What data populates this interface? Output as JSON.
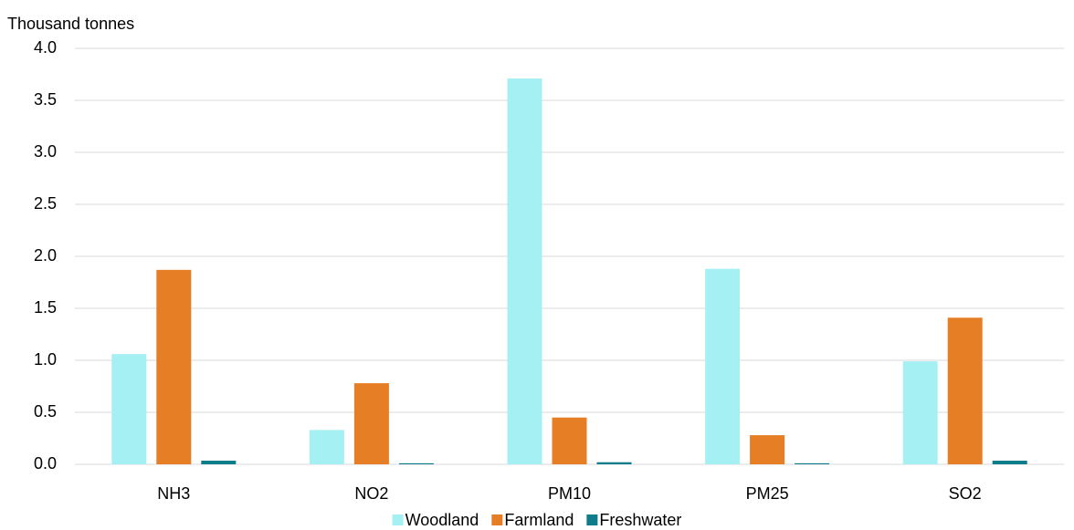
{
  "chart_data": {
    "type": "bar",
    "y_label": "Thousand tonnes",
    "categories": [
      "NH3",
      "NO2",
      "PM10",
      "PM25",
      "SO2"
    ],
    "series": [
      {
        "name": "Woodland",
        "color": "#a5f0f2",
        "values": [
          1.06,
          0.33,
          3.71,
          1.88,
          0.99
        ]
      },
      {
        "name": "Farmland",
        "color": "#e57e24",
        "values": [
          1.87,
          0.78,
          0.45,
          0.28,
          1.41
        ]
      },
      {
        "name": "Freshwater",
        "color": "#0f7c8a",
        "values": [
          0.035,
          0.01,
          0.02,
          0.01,
          0.035
        ]
      }
    ],
    "ylim": [
      0,
      4
    ],
    "yticks": [
      {
        "value": 0,
        "label": "0.0"
      },
      {
        "value": 0.5,
        "label": "0.5"
      },
      {
        "value": 1,
        "label": "1.0"
      },
      {
        "value": 1.5,
        "label": "1.5"
      },
      {
        "value": 2,
        "label": "2.0"
      },
      {
        "value": 2.5,
        "label": "2.5"
      },
      {
        "value": 3,
        "label": "3.0"
      },
      {
        "value": 3.5,
        "label": "3.5"
      },
      {
        "value": 4,
        "label": "4.0"
      }
    ],
    "grid": true,
    "legend": "bottom"
  }
}
